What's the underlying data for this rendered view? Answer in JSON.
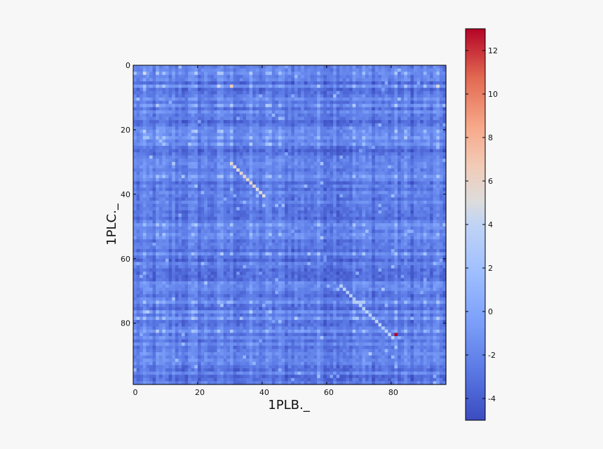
{
  "chart_data": {
    "type": "heatmap",
    "title": "",
    "xlabel": "1PLB._",
    "ylabel": "1PLC._",
    "x_ticks": [
      0,
      20,
      40,
      60,
      80
    ],
    "y_ticks": [
      0,
      20,
      40,
      60,
      80
    ],
    "xlim": [
      0,
      97
    ],
    "ylim": [
      0,
      99
    ],
    "grid": false,
    "colormap": "coolwarm",
    "colorbar": {
      "range": [
        -5,
        13
      ],
      "ticks": [
        -4,
        -2,
        0,
        2,
        4,
        6,
        8,
        10,
        12
      ],
      "low_color": "#3b4cc0",
      "mid_color": "#dddddd",
      "high_color": "#b40426"
    },
    "value_summary": {
      "typical_range": [
        -5,
        7
      ],
      "background_mean": -2,
      "max_value": 13,
      "max_location": {
        "x": 81,
        "y": 83
      },
      "diagonal_hotspots": [
        {
          "x_start": 30,
          "y_start": 30,
          "x_end": 40,
          "y_end": 40,
          "value": 6
        },
        {
          "x_start": 64,
          "y_start": 68,
          "x_end": 82,
          "y_end": 84,
          "value": 4
        }
      ]
    }
  }
}
